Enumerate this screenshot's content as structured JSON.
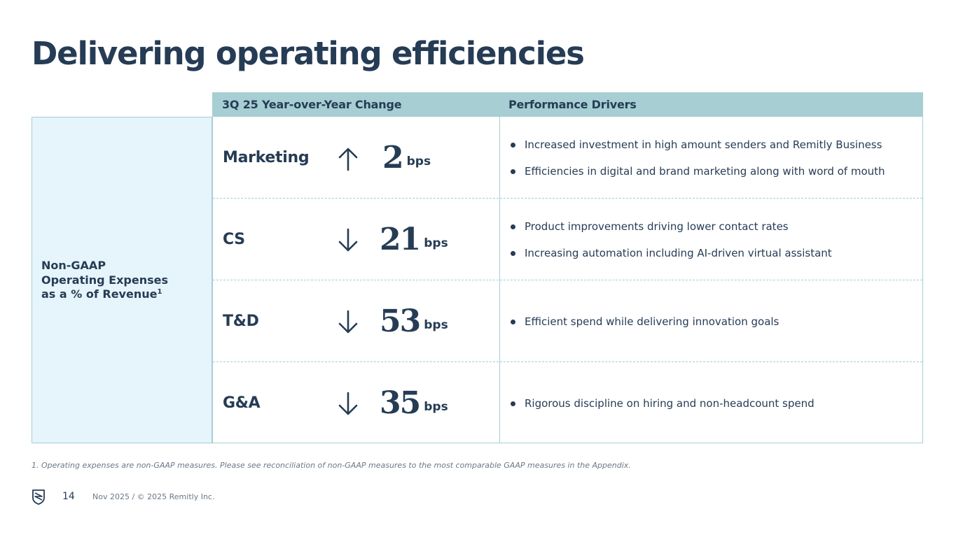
{
  "title": "Delivering operating efficiencies",
  "header": {
    "col1": "3Q 25 Year-over-Year Change",
    "col2": "Performance Drivers"
  },
  "left_label": {
    "line1": "Non-GAAP",
    "line2": "Operating Expenses",
    "line3": "as a % of Revenue",
    "superscript": "1"
  },
  "rows": [
    {
      "metric": "Marketing",
      "direction": "up",
      "value": "2",
      "unit": "bps",
      "drivers": [
        "Increased investment in high amount senders and Remitly Business",
        "Efficiencies in digital and brand marketing along with word of mouth"
      ]
    },
    {
      "metric": "CS",
      "direction": "down",
      "value": "21",
      "unit": "bps",
      "drivers": [
        "Product improvements driving lower contact rates",
        "Increasing automation including AI-driven virtual assistant"
      ]
    },
    {
      "metric": "T&D",
      "direction": "down",
      "value": "53",
      "unit": "bps",
      "drivers": [
        "Efficient spend while delivering innovation goals"
      ]
    },
    {
      "metric": "G&A",
      "direction": "down",
      "value": "35",
      "unit": "bps",
      "drivers": [
        "Rigorous discipline on hiring and non-headcount spend"
      ]
    }
  ],
  "footnote": "1. Operating expenses are non-GAAP measures. Please see reconciliation of non-GAAP measures to the most comparable GAAP measures in the Appendix.",
  "footer": {
    "page_number": "14",
    "copyright": "Nov 2025 / © 2025 Remitly Inc."
  },
  "colors": {
    "navy": "#263c55",
    "header_teal": "#a6ced3",
    "left_bg": "#e6f5fb"
  }
}
